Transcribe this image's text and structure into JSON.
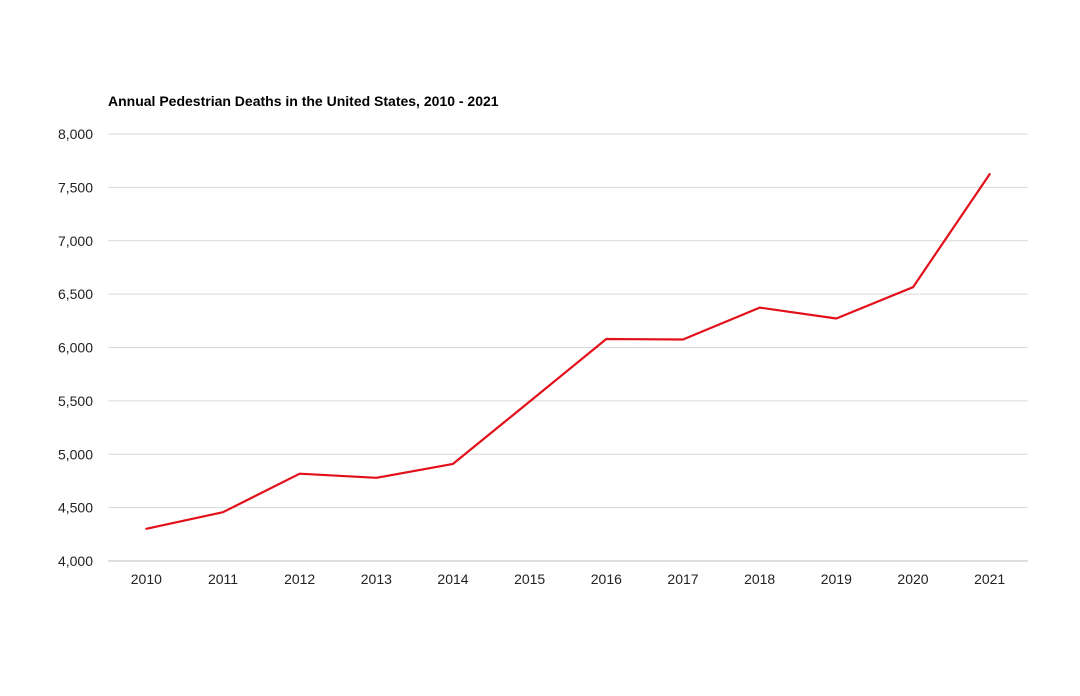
{
  "chart_data": {
    "type": "line",
    "title": "Annual Pedestrian Deaths in the United States, 2010 - 2021",
    "xlabel": "",
    "ylabel": "",
    "categories": [
      "2010",
      "2011",
      "2012",
      "2013",
      "2014",
      "2015",
      "2016",
      "2017",
      "2018",
      "2019",
      "2020",
      "2021"
    ],
    "series": [
      {
        "values": [
          4302,
          4457,
          4818,
          4779,
          4910,
          5494,
          6080,
          6075,
          6374,
          6272,
          6565,
          7624
        ],
        "color": "#e3101b"
      }
    ],
    "ylim": [
      4000,
      8000
    ],
    "yticks": [
      4000,
      4500,
      5000,
      5500,
      6000,
      6500,
      7000,
      7500,
      8000
    ],
    "ytick_labels": [
      "4,000",
      "4,500",
      "5,000",
      "5,500",
      "6,000",
      "6,500",
      "7,000",
      "7,500",
      "8,000"
    ],
    "grid": true,
    "legend": "none"
  }
}
